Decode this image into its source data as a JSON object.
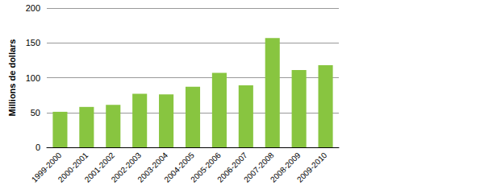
{
  "chart_data": {
    "type": "bar",
    "y_label": "Millions de dollars",
    "categories": [
      "1999-2000",
      "2000-2001",
      "2001-2002",
      "2002-2003",
      "2003-2004",
      "2004-2005",
      "2005-2006",
      "2006-2007",
      "2007-2008",
      "2008-2009",
      "2009-2010"
    ],
    "values": [
      51,
      58,
      61,
      77,
      76,
      87,
      107,
      89,
      157,
      111,
      118
    ],
    "color": "#88c540",
    "ylim": [
      0,
      200
    ],
    "yticks": [
      0,
      50,
      100,
      150,
      200
    ],
    "grid": true
  }
}
